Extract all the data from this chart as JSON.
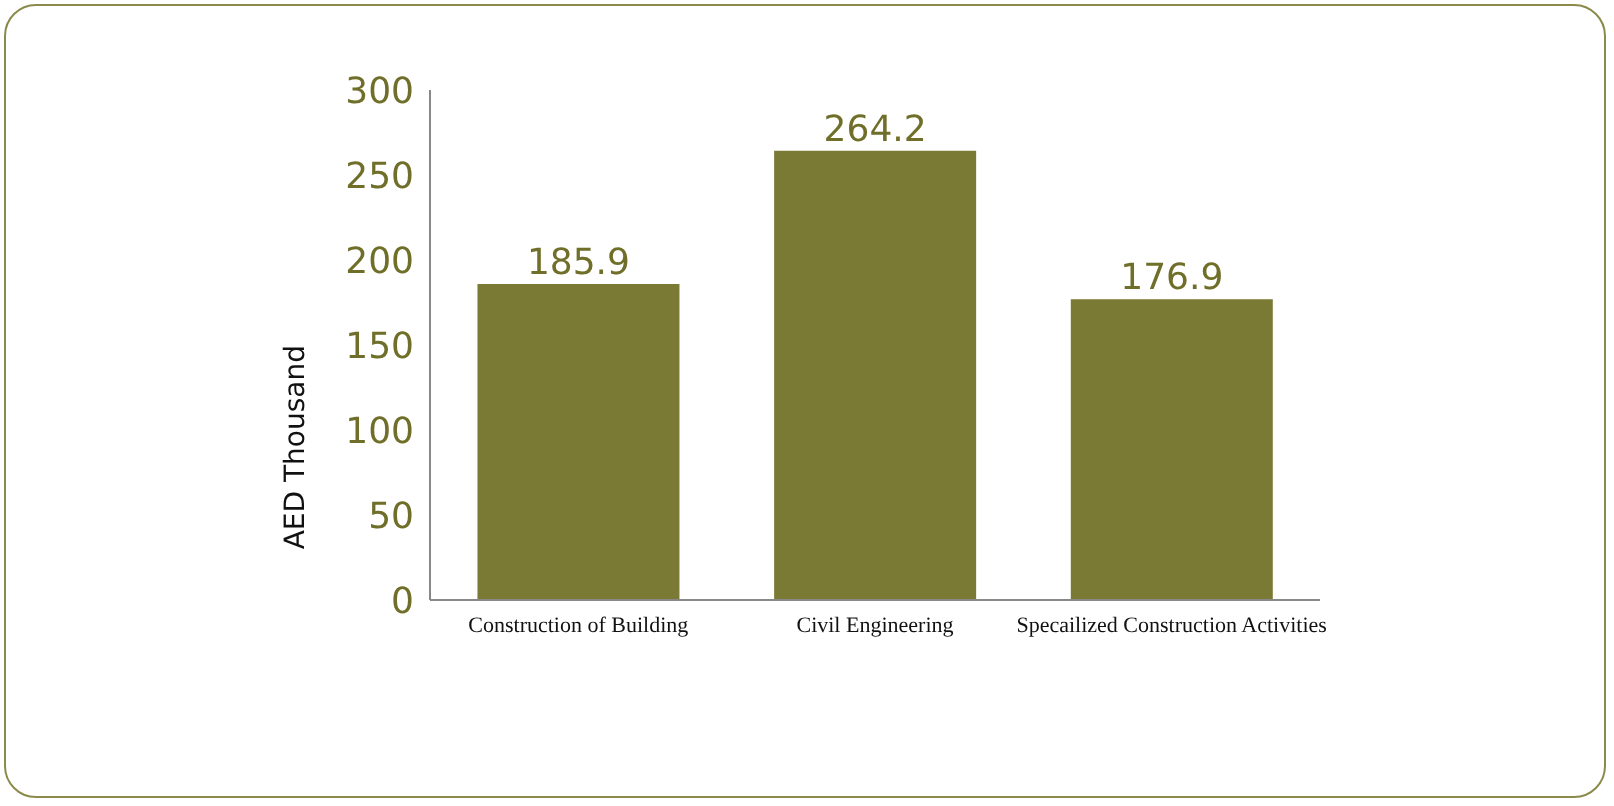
{
  "chart_data": {
    "type": "bar",
    "ylabel": "AED Thousand",
    "categories": [
      "Construction of Building",
      "Civil Engineering",
      "Specailized Construction Activities"
    ],
    "values": [
      185.9,
      264.2,
      176.9
    ],
    "color": "#7a7a35",
    "data_labels": true,
    "ylim": [
      0,
      300
    ],
    "yticks": [
      0,
      50,
      100,
      150,
      200,
      250,
      300
    ],
    "grid": false
  }
}
